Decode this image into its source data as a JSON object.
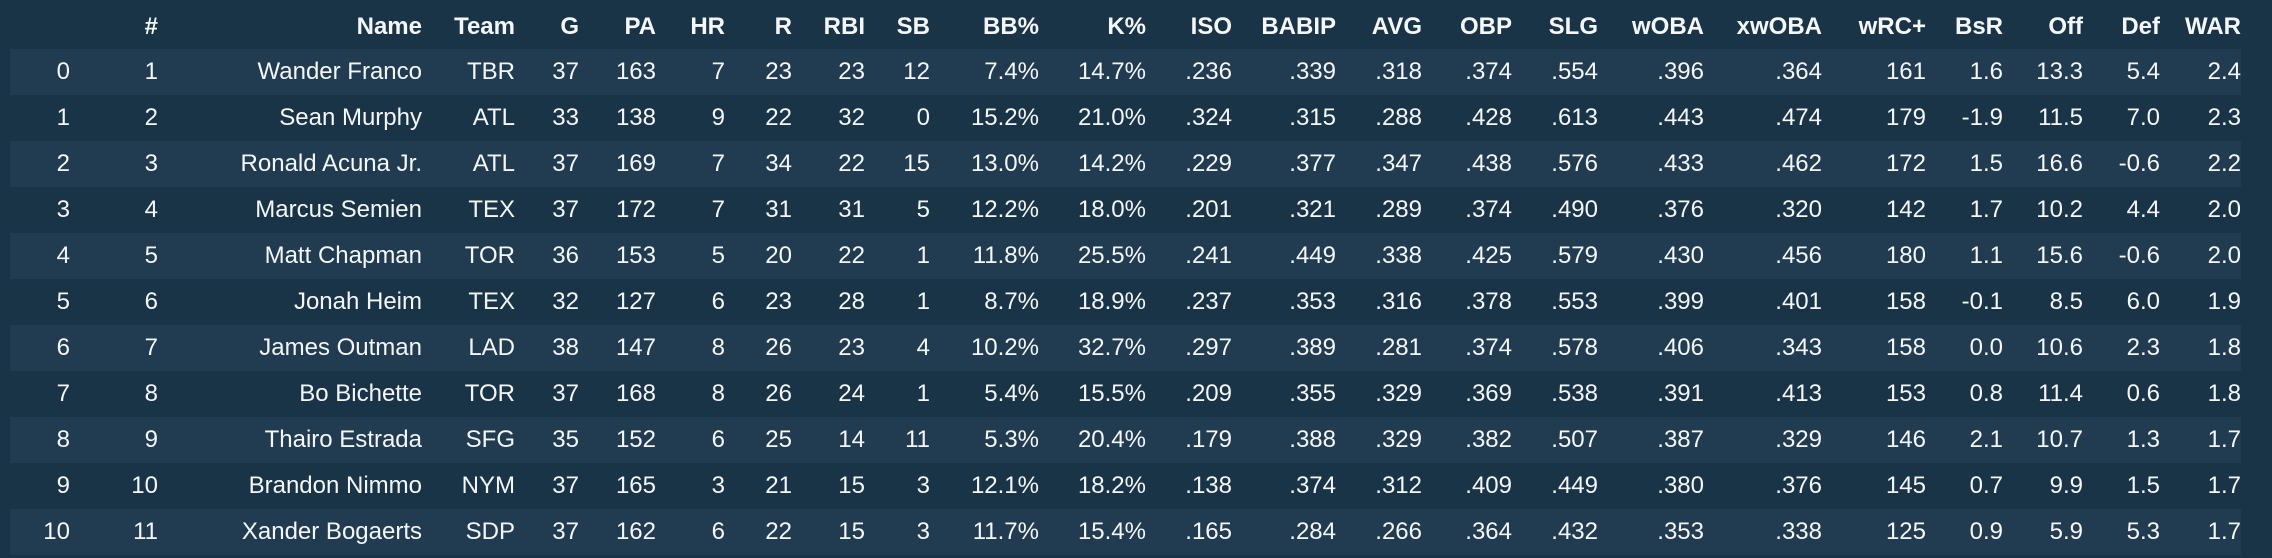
{
  "table": {
    "columns": [
      "",
      "#",
      "Name",
      "Team",
      "G",
      "PA",
      "HR",
      "R",
      "RBI",
      "SB",
      "BB%",
      "K%",
      "ISO",
      "BABIP",
      "AVG",
      "OBP",
      "SLG",
      "wOBA",
      "xwOBA",
      "wRC+",
      "BsR",
      "Off",
      "Def",
      "WAR"
    ],
    "rows": [
      [
        "0",
        "1",
        "Wander Franco",
        "TBR",
        "37",
        "163",
        "7",
        "23",
        "23",
        "12",
        "7.4%",
        "14.7%",
        ".236",
        ".339",
        ".318",
        ".374",
        ".554",
        ".396",
        ".364",
        "161",
        "1.6",
        "13.3",
        "5.4",
        "2.4"
      ],
      [
        "1",
        "2",
        "Sean Murphy",
        "ATL",
        "33",
        "138",
        "9",
        "22",
        "32",
        "0",
        "15.2%",
        "21.0%",
        ".324",
        ".315",
        ".288",
        ".428",
        ".613",
        ".443",
        ".474",
        "179",
        "-1.9",
        "11.5",
        "7.0",
        "2.3"
      ],
      [
        "2",
        "3",
        "Ronald Acuna Jr.",
        "ATL",
        "37",
        "169",
        "7",
        "34",
        "22",
        "15",
        "13.0%",
        "14.2%",
        ".229",
        ".377",
        ".347",
        ".438",
        ".576",
        ".433",
        ".462",
        "172",
        "1.5",
        "16.6",
        "-0.6",
        "2.2"
      ],
      [
        "3",
        "4",
        "Marcus Semien",
        "TEX",
        "37",
        "172",
        "7",
        "31",
        "31",
        "5",
        "12.2%",
        "18.0%",
        ".201",
        ".321",
        ".289",
        ".374",
        ".490",
        ".376",
        ".320",
        "142",
        "1.7",
        "10.2",
        "4.4",
        "2.0"
      ],
      [
        "4",
        "5",
        "Matt Chapman",
        "TOR",
        "36",
        "153",
        "5",
        "20",
        "22",
        "1",
        "11.8%",
        "25.5%",
        ".241",
        ".449",
        ".338",
        ".425",
        ".579",
        ".430",
        ".456",
        "180",
        "1.1",
        "15.6",
        "-0.6",
        "2.0"
      ],
      [
        "5",
        "6",
        "Jonah Heim",
        "TEX",
        "32",
        "127",
        "6",
        "23",
        "28",
        "1",
        "8.7%",
        "18.9%",
        ".237",
        ".353",
        ".316",
        ".378",
        ".553",
        ".399",
        ".401",
        "158",
        "-0.1",
        "8.5",
        "6.0",
        "1.9"
      ],
      [
        "6",
        "7",
        "James Outman",
        "LAD",
        "38",
        "147",
        "8",
        "26",
        "23",
        "4",
        "10.2%",
        "32.7%",
        ".297",
        ".389",
        ".281",
        ".374",
        ".578",
        ".406",
        ".343",
        "158",
        "0.0",
        "10.6",
        "2.3",
        "1.8"
      ],
      [
        "7",
        "8",
        "Bo Bichette",
        "TOR",
        "37",
        "168",
        "8",
        "26",
        "24",
        "1",
        "5.4%",
        "15.5%",
        ".209",
        ".355",
        ".329",
        ".369",
        ".538",
        ".391",
        ".413",
        "153",
        "0.8",
        "11.4",
        "0.6",
        "1.8"
      ],
      [
        "8",
        "9",
        "Thairo Estrada",
        "SFG",
        "35",
        "152",
        "6",
        "25",
        "14",
        "11",
        "5.3%",
        "20.4%",
        ".179",
        ".388",
        ".329",
        ".382",
        ".507",
        ".387",
        ".329",
        "146",
        "2.1",
        "10.7",
        "1.3",
        "1.7"
      ],
      [
        "9",
        "10",
        "Brandon Nimmo",
        "NYM",
        "37",
        "165",
        "3",
        "21",
        "15",
        "3",
        "12.1%",
        "18.2%",
        ".138",
        ".374",
        ".312",
        ".409",
        ".449",
        ".380",
        ".376",
        "145",
        "0.7",
        "9.9",
        "1.5",
        "1.7"
      ],
      [
        "10",
        "11",
        "Xander Bogaerts",
        "SDP",
        "37",
        "162",
        "6",
        "22",
        "15",
        "3",
        "11.7%",
        "15.4%",
        ".165",
        ".284",
        ".266",
        ".364",
        ".432",
        ".353",
        ".338",
        "125",
        "0.9",
        "5.9",
        "5.3",
        "1.7"
      ]
    ]
  },
  "colors": {
    "background": "#1a3447",
    "row_stripe": "#213c51",
    "text": "#f4f6f8"
  }
}
